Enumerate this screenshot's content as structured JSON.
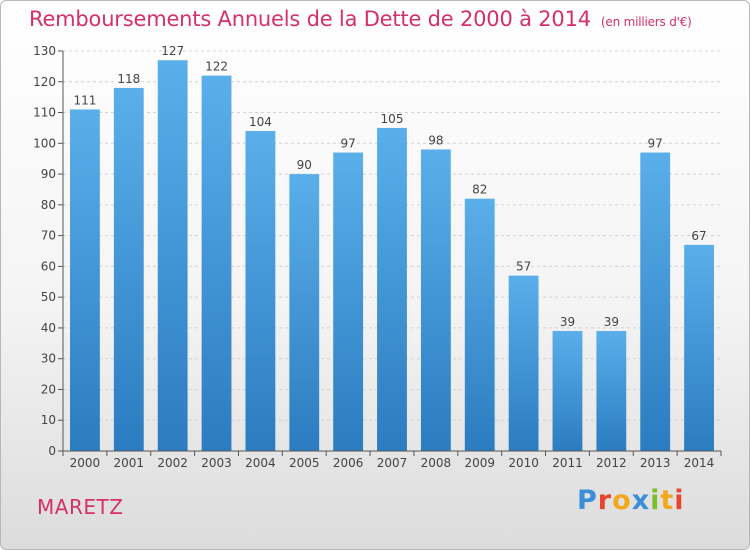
{
  "header": {
    "title": "Remboursements Annuels de la Dette de 2000 à 2014",
    "unit": "(en milliers d'€)"
  },
  "footer": {
    "commune": "MARETZ",
    "brand": "Proxiti"
  },
  "colors": {
    "title": "#d6306a",
    "bar_light": "#5aafea",
    "bar_dark": "#2b7cc0",
    "brand_letters": [
      "#3a8fd8",
      "#e8452c",
      "#f2a81d",
      "#3a8fd8",
      "#7cbf2a",
      "#f2a81d",
      "#e8452c"
    ]
  },
  "chart_data": {
    "type": "bar",
    "categories": [
      "2000",
      "2001",
      "2002",
      "2003",
      "2004",
      "2005",
      "2006",
      "2007",
      "2008",
      "2009",
      "2010",
      "2011",
      "2012",
      "2013",
      "2014"
    ],
    "values": [
      111,
      118,
      127,
      122,
      104,
      90,
      97,
      105,
      98,
      82,
      57,
      39,
      39,
      97,
      67
    ],
    "title": "Remboursements Annuels de la Dette de 2000 à 2014",
    "subtitle": "(en milliers d'€)",
    "xlabel": "",
    "ylabel": "",
    "ylim": [
      0,
      130
    ],
    "yticks": [
      0,
      10,
      20,
      30,
      40,
      50,
      60,
      70,
      80,
      90,
      100,
      110,
      120,
      130
    ],
    "grid": true,
    "data_labels": true
  }
}
